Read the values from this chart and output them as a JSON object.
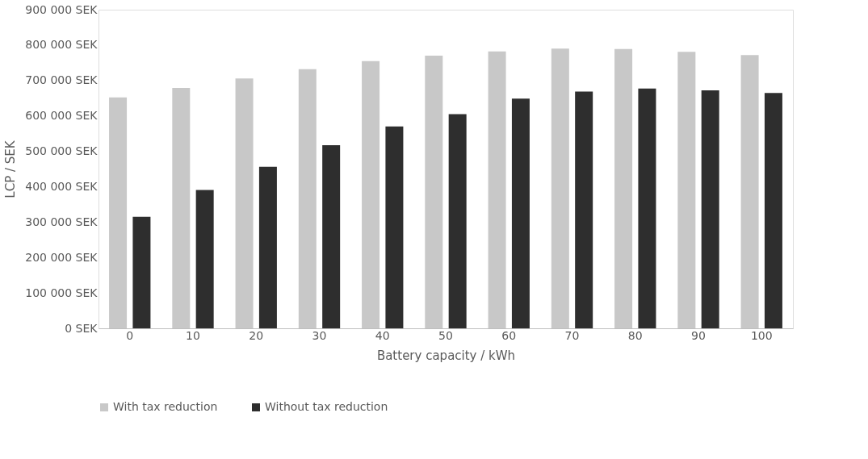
{
  "chart_data": {
    "type": "bar",
    "xlabel": "Battery capacity / kWh",
    "ylabel": "LCP / SEK",
    "categories": [
      "0",
      "10",
      "20",
      "30",
      "40",
      "50",
      "60",
      "70",
      "80",
      "90",
      "100"
    ],
    "series": [
      {
        "name": "With tax reduction",
        "color": "#c8c8c8",
        "values": [
          652000,
          679000,
          706000,
          732000,
          755000,
          770000,
          782000,
          790000,
          789000,
          781000,
          772000
        ]
      },
      {
        "name": "Without tax reduction",
        "color": "#2e2e2e",
        "values": [
          315000,
          391000,
          456000,
          517000,
          570000,
          605000,
          649000,
          669000,
          677000,
          672000,
          665000
        ]
      }
    ],
    "ylim": [
      0,
      900000
    ],
    "yticks": [
      {
        "value": 0,
        "label": "0 SEK"
      },
      {
        "value": 100000,
        "label": "100 000 SEK"
      },
      {
        "value": 200000,
        "label": "200 000 SEK"
      },
      {
        "value": 300000,
        "label": "300 000 SEK"
      },
      {
        "value": 400000,
        "label": "400 000 SEK"
      },
      {
        "value": 500000,
        "label": "500 000 SEK"
      },
      {
        "value": 600000,
        "label": "600 000 SEK"
      },
      {
        "value": 700000,
        "label": "700 000 SEK"
      },
      {
        "value": 800000,
        "label": "800 000 SEK"
      },
      {
        "value": 900000,
        "label": "900 000 SEK"
      }
    ],
    "grid": false,
    "legend": "bottom"
  }
}
